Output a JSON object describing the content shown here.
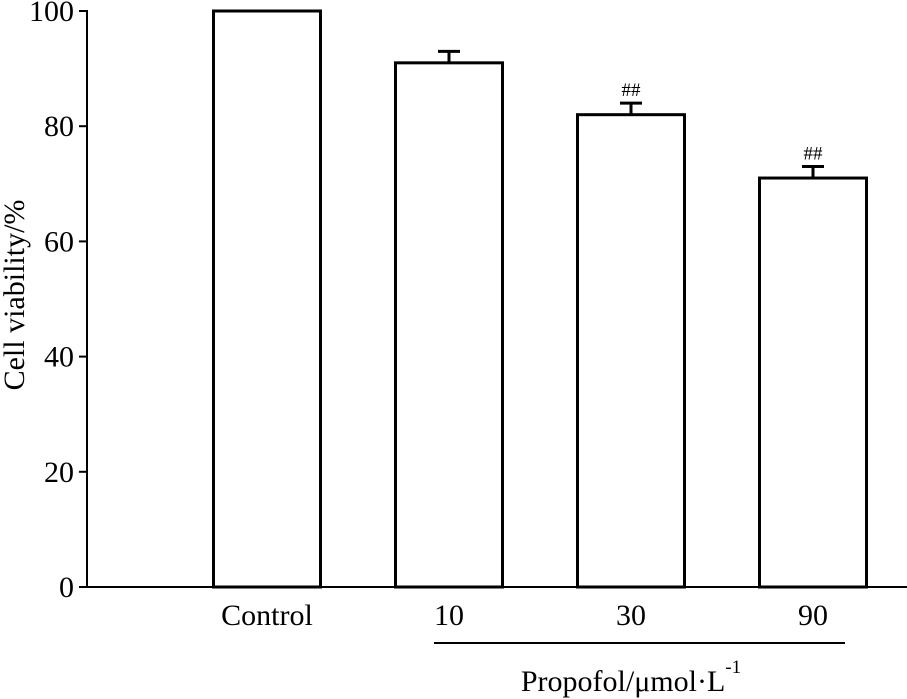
{
  "chart_data": {
    "type": "bar",
    "categories": [
      "Control",
      "10",
      "30",
      "90"
    ],
    "values": [
      100,
      91,
      82,
      71
    ],
    "errors": [
      0,
      2,
      2,
      2
    ],
    "annotations": [
      "",
      "",
      "##",
      "##"
    ],
    "ylabel": "Cell viability/%",
    "xlabel": {
      "main": "Propofol/μmol·L",
      "superscript": "-1"
    },
    "ylim": [
      0,
      100
    ],
    "yticks": [
      0,
      20,
      40,
      60,
      80,
      100
    ],
    "grid": false,
    "colors": {
      "bar_fill": "#ffffff",
      "stroke": "#000000"
    }
  }
}
